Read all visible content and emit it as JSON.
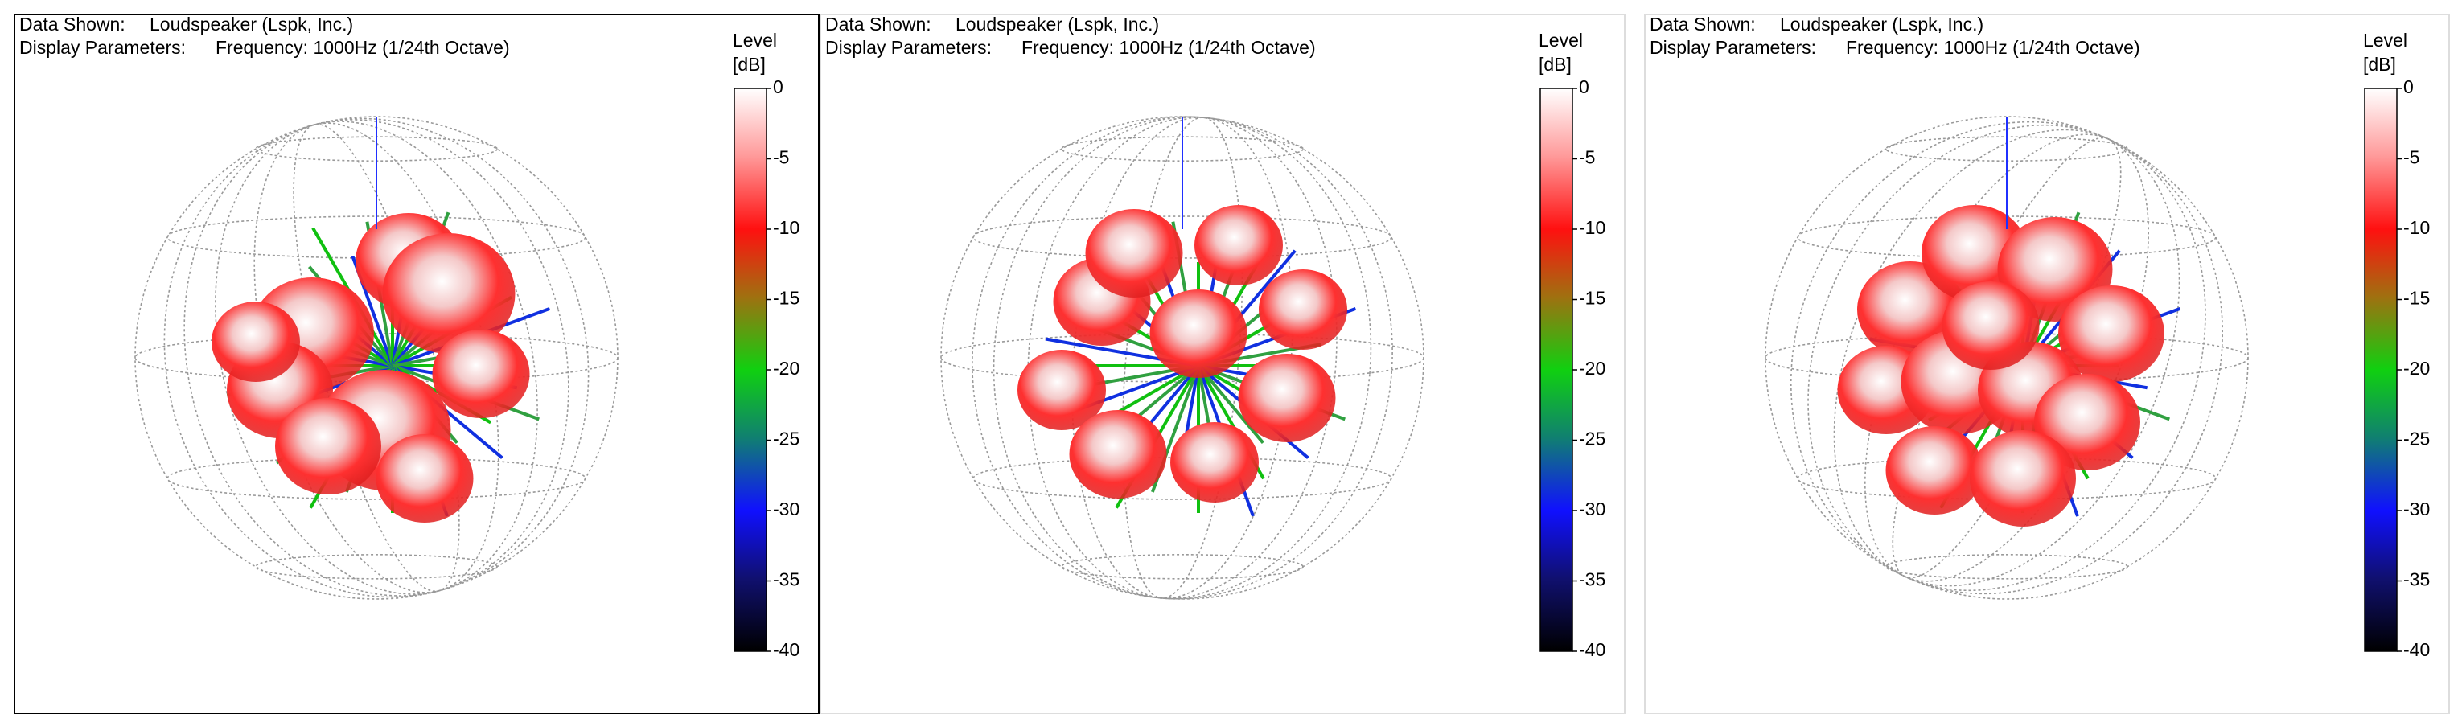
{
  "panels": [
    {
      "data_shown_label": "Data Shown:",
      "data_shown_value": "Loudspeaker (Lspk, Inc.)",
      "display_params_label": "Display Parameters:",
      "display_params_value": "Frequency: 1000Hz (1/24th Octave)",
      "level_label": "Level",
      "unit_label": "[dB]",
      "ticks": [
        0,
        -5,
        -10,
        -15,
        -20,
        -25,
        -30,
        -35,
        -40
      ]
    },
    {
      "data_shown_label": "Data Shown:",
      "data_shown_value": "Loudspeaker (Lspk, Inc.)",
      "display_params_label": "Display Parameters:",
      "display_params_value": "Frequency: 1000Hz (1/24th Octave)",
      "level_label": "Level",
      "unit_label": "[dB]",
      "ticks": [
        0,
        -5,
        -10,
        -15,
        -20,
        -25,
        -30,
        -35,
        -40
      ]
    },
    {
      "data_shown_label": "Data Shown:",
      "data_shown_value": "Loudspeaker (Lspk, Inc.)",
      "display_params_label": "Display Parameters:",
      "display_params_value": "Frequency: 1000Hz (1/24th Octave)",
      "level_label": "Level",
      "unit_label": "[dB]",
      "ticks": [
        0,
        -5,
        -10,
        -15,
        -20,
        -25,
        -30,
        -35,
        -40
      ]
    }
  ]
}
